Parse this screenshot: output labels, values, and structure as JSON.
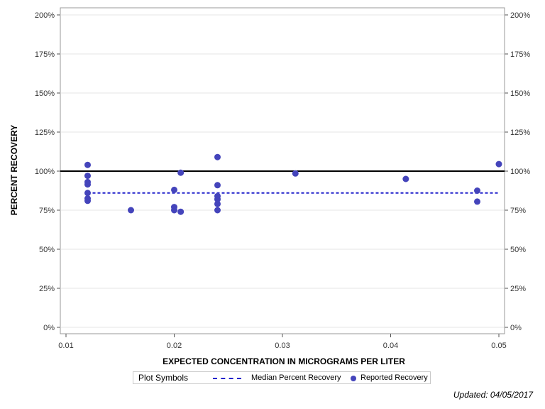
{
  "chart_data": {
    "type": "scatter",
    "xlabel": "EXPECTED CONCENTRATION IN MICROGRAMS PER LITER",
    "ylabel": "PERCENT RECOVERY",
    "xlim": [
      0.0095,
      0.0507
    ],
    "ylim": [
      0,
      200
    ],
    "x_ticks": [
      "0.01",
      "0.02",
      "0.03",
      "0.04",
      "0.05"
    ],
    "x_tick_values": [
      0.01,
      0.02,
      0.03,
      0.04,
      0.05
    ],
    "y_ticks": [
      "0%",
      "25%",
      "50%",
      "75%",
      "100%",
      "125%",
      "150%",
      "175%",
      "200%"
    ],
    "y_tick_values": [
      0,
      25,
      50,
      75,
      100,
      125,
      150,
      175,
      200
    ],
    "grid": true,
    "reference_line": 100,
    "median_recovery": 86,
    "series": [
      {
        "name": "Reported Recovery",
        "color": "#4444bb",
        "points": [
          [
            0.012,
            104
          ],
          [
            0.012,
            97
          ],
          [
            0.012,
            93
          ],
          [
            0.012,
            91.5
          ],
          [
            0.012,
            86
          ],
          [
            0.012,
            82.5
          ],
          [
            0.012,
            81
          ],
          [
            0.016,
            75
          ],
          [
            0.02,
            88
          ],
          [
            0.02,
            77
          ],
          [
            0.02,
            75
          ],
          [
            0.0206,
            99
          ],
          [
            0.0206,
            74
          ],
          [
            0.024,
            109
          ],
          [
            0.024,
            91
          ],
          [
            0.024,
            84
          ],
          [
            0.024,
            82
          ],
          [
            0.024,
            79
          ],
          [
            0.024,
            75
          ],
          [
            0.0312,
            98.5
          ],
          [
            0.0414,
            95
          ],
          [
            0.048,
            87.5
          ],
          [
            0.048,
            80.5
          ],
          [
            0.05,
            104.5
          ]
        ]
      }
    ],
    "median_line": {
      "name": "Median Percent Recovery",
      "color": "#2222cc"
    }
  },
  "legend": {
    "title": "Plot Symbols",
    "median_label": "Median Percent Recovery",
    "reported_label": "Reported Recovery"
  },
  "footer": {
    "updated": "Updated: 04/05/2017"
  }
}
